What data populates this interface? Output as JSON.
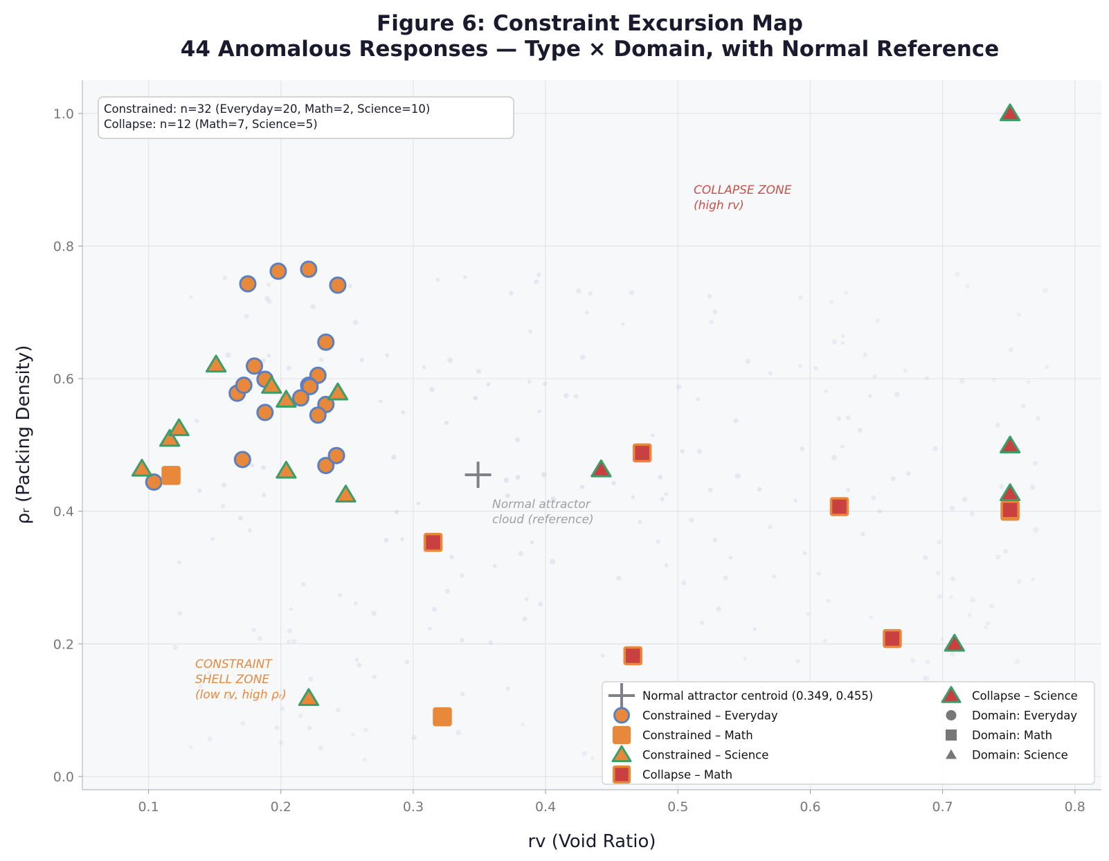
{
  "chart_data": {
    "type": "scatter",
    "title": "Figure 6: Constraint Excursion Map",
    "subtitle": "44 Anomalous Responses — Type × Domain, with Normal Reference",
    "xlabel": "rv  (Void Ratio)",
    "ylabel": "ρᵣ  (Packing Density)",
    "xlim": [
      0.05,
      0.82
    ],
    "ylim": [
      -0.02,
      1.05
    ],
    "x_ticks": [
      "0.1",
      "0.2",
      "0.3",
      "0.4",
      "0.5",
      "0.6",
      "0.7",
      "0.8"
    ],
    "y_ticks": [
      "0.0",
      "0.2",
      "0.4",
      "0.6",
      "0.8",
      "1.0"
    ],
    "grid": true,
    "legend_placement": "lower right",
    "info_box": {
      "line1": "Constrained: n=32  (Everyday=20, Math=2, Science=10)",
      "line2": "Collapse: n=12  (Math=7, Science=5)"
    },
    "annotations": {
      "collapse_zone": [
        "COLLAPSE ZONE",
        "(high rv)"
      ],
      "constraint_zone": [
        "CONSTRAINT",
        "SHELL ZONE",
        "(low rv, high ρᵣ)"
      ],
      "normal_cloud": [
        "Normal attractor",
        "cloud (reference)"
      ]
    },
    "centroid": {
      "name": "Normal attractor centroid (0.349, 0.455)",
      "x": 0.349,
      "y": 0.455
    },
    "legend": [
      "Normal attractor centroid (0.349, 0.455)",
      "Constrained – Everyday",
      "Constrained – Math",
      "Constrained – Science",
      "Collapse – Math",
      "Collapse – Science",
      "Domain: Everyday",
      "Domain: Math",
      "Domain: Science"
    ],
    "colors": {
      "orange": "#e8883a",
      "blue_edge": "#5b7fbf",
      "green_edge": "#3a9e6a",
      "red": "#c84040",
      "centroid": "#808088",
      "plot_bg": "#f7f8fa",
      "grid": "#e2e4e8",
      "collapse_zone_text": "#c9504a",
      "constraint_zone_text": "#e8883a",
      "normal_text": "#a0a0a0"
    },
    "series": [
      {
        "name": "Constrained – Everyday",
        "marker": "circle",
        "points": [
          [
            0.104,
            0.444
          ],
          [
            0.171,
            0.478
          ],
          [
            0.167,
            0.578
          ],
          [
            0.172,
            0.59
          ],
          [
            0.18,
            0.619
          ],
          [
            0.188,
            0.599
          ],
          [
            0.188,
            0.549
          ],
          [
            0.175,
            0.743
          ],
          [
            0.198,
            0.762
          ],
          [
            0.221,
            0.765
          ],
          [
            0.243,
            0.741
          ],
          [
            0.234,
            0.655
          ],
          [
            0.228,
            0.605
          ],
          [
            0.221,
            0.59
          ],
          [
            0.222,
            0.588
          ],
          [
            0.215,
            0.571
          ],
          [
            0.234,
            0.561
          ],
          [
            0.228,
            0.545
          ],
          [
            0.234,
            0.469
          ],
          [
            0.242,
            0.484
          ]
        ]
      },
      {
        "name": "Constrained – Math",
        "marker": "square",
        "points": [
          [
            0.117,
            0.454
          ],
          [
            0.322,
            0.09
          ]
        ]
      },
      {
        "name": "Constrained – Science",
        "marker": "triangle",
        "points": [
          [
            0.095,
            0.464
          ],
          [
            0.116,
            0.509
          ],
          [
            0.123,
            0.525
          ],
          [
            0.151,
            0.621
          ],
          [
            0.193,
            0.589
          ],
          [
            0.204,
            0.568
          ],
          [
            0.204,
            0.461
          ],
          [
            0.243,
            0.579
          ],
          [
            0.249,
            0.425
          ],
          [
            0.221,
            0.118
          ]
        ]
      },
      {
        "name": "Collapse – Math",
        "marker": "square",
        "points": [
          [
            0.315,
            0.353
          ],
          [
            0.473,
            0.488
          ],
          [
            0.466,
            0.182
          ],
          [
            0.622,
            0.407
          ],
          [
            0.662,
            0.208
          ],
          [
            0.751,
            0.4
          ],
          [
            0.751,
            0.402
          ]
        ]
      },
      {
        "name": "Collapse – Science",
        "marker": "triangle",
        "points": [
          [
            0.751,
            1.0
          ],
          [
            0.751,
            0.499
          ],
          [
            0.751,
            0.427
          ],
          [
            0.442,
            0.463
          ],
          [
            0.709,
            0.2
          ]
        ]
      }
    ]
  }
}
